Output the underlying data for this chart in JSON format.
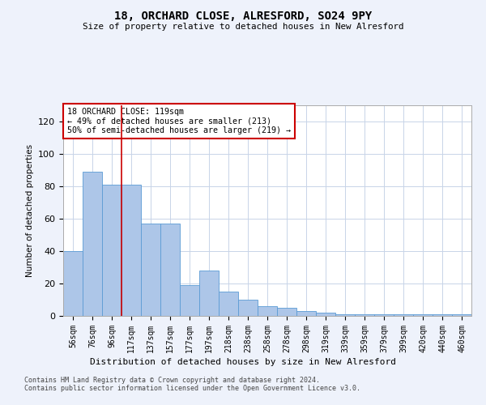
{
  "title": "18, ORCHARD CLOSE, ALRESFORD, SO24 9PY",
  "subtitle": "Size of property relative to detached houses in New Alresford",
  "xlabel": "Distribution of detached houses by size in New Alresford",
  "ylabel": "Number of detached properties",
  "categories": [
    "56sqm",
    "76sqm",
    "96sqm",
    "117sqm",
    "137sqm",
    "157sqm",
    "177sqm",
    "197sqm",
    "218sqm",
    "238sqm",
    "258sqm",
    "278sqm",
    "298sqm",
    "319sqm",
    "339sqm",
    "359sqm",
    "379sqm",
    "399sqm",
    "420sqm",
    "440sqm",
    "460sqm"
  ],
  "values": [
    40,
    89,
    81,
    81,
    57,
    57,
    19,
    28,
    15,
    10,
    6,
    5,
    3,
    2,
    1,
    1,
    1,
    1,
    1,
    1,
    1
  ],
  "bar_color": "#adc6e8",
  "bar_edge_color": "#5b9bd5",
  "vline_x": 2.5,
  "vline_color": "#cc0000",
  "annotation_text": "18 ORCHARD CLOSE: 119sqm\n← 49% of detached houses are smaller (213)\n50% of semi-detached houses are larger (219) →",
  "annotation_box_color": "#ffffff",
  "annotation_box_edge": "#cc0000",
  "ylim": [
    0,
    130
  ],
  "yticks": [
    0,
    20,
    40,
    60,
    80,
    100,
    120
  ],
  "footer": "Contains HM Land Registry data © Crown copyright and database right 2024.\nContains public sector information licensed under the Open Government Licence v3.0.",
  "bg_color": "#eef2fb",
  "plot_bg_color": "#ffffff",
  "grid_color": "#c8d4e8"
}
